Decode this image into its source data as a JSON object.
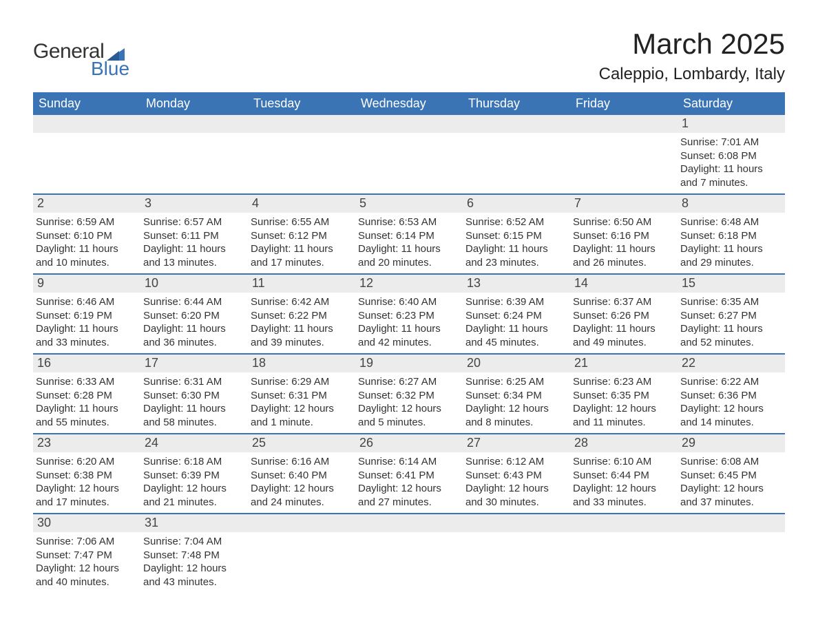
{
  "logo": {
    "general": "General",
    "blue": "Blue"
  },
  "title": "March 2025",
  "location": "Caleppio, Lombardy, Italy",
  "colors": {
    "header_bg": "#3a74b5",
    "header_text": "#ffffff",
    "daynum_bg": "#ececec",
    "body_text": "#333333",
    "row_divider": "#3a74b5",
    "logo_blue": "#3a74b5",
    "logo_dark": "#333333",
    "page_bg": "#ffffff"
  },
  "typography": {
    "title_fontsize": 42,
    "location_fontsize": 24,
    "dayheader_fontsize": 18,
    "daynum_fontsize": 18,
    "body_fontsize": 15,
    "font_family": "Arial"
  },
  "day_headers": [
    "Sunday",
    "Monday",
    "Tuesday",
    "Wednesday",
    "Thursday",
    "Friday",
    "Saturday"
  ],
  "weeks": [
    [
      {
        "day": "",
        "sunrise": "",
        "sunset": "",
        "daylight": ""
      },
      {
        "day": "",
        "sunrise": "",
        "sunset": "",
        "daylight": ""
      },
      {
        "day": "",
        "sunrise": "",
        "sunset": "",
        "daylight": ""
      },
      {
        "day": "",
        "sunrise": "",
        "sunset": "",
        "daylight": ""
      },
      {
        "day": "",
        "sunrise": "",
        "sunset": "",
        "daylight": ""
      },
      {
        "day": "",
        "sunrise": "",
        "sunset": "",
        "daylight": ""
      },
      {
        "day": "1",
        "sunrise": "Sunrise: 7:01 AM",
        "sunset": "Sunset: 6:08 PM",
        "daylight": "Daylight: 11 hours and 7 minutes."
      }
    ],
    [
      {
        "day": "2",
        "sunrise": "Sunrise: 6:59 AM",
        "sunset": "Sunset: 6:10 PM",
        "daylight": "Daylight: 11 hours and 10 minutes."
      },
      {
        "day": "3",
        "sunrise": "Sunrise: 6:57 AM",
        "sunset": "Sunset: 6:11 PM",
        "daylight": "Daylight: 11 hours and 13 minutes."
      },
      {
        "day": "4",
        "sunrise": "Sunrise: 6:55 AM",
        "sunset": "Sunset: 6:12 PM",
        "daylight": "Daylight: 11 hours and 17 minutes."
      },
      {
        "day": "5",
        "sunrise": "Sunrise: 6:53 AM",
        "sunset": "Sunset: 6:14 PM",
        "daylight": "Daylight: 11 hours and 20 minutes."
      },
      {
        "day": "6",
        "sunrise": "Sunrise: 6:52 AM",
        "sunset": "Sunset: 6:15 PM",
        "daylight": "Daylight: 11 hours and 23 minutes."
      },
      {
        "day": "7",
        "sunrise": "Sunrise: 6:50 AM",
        "sunset": "Sunset: 6:16 PM",
        "daylight": "Daylight: 11 hours and 26 minutes."
      },
      {
        "day": "8",
        "sunrise": "Sunrise: 6:48 AM",
        "sunset": "Sunset: 6:18 PM",
        "daylight": "Daylight: 11 hours and 29 minutes."
      }
    ],
    [
      {
        "day": "9",
        "sunrise": "Sunrise: 6:46 AM",
        "sunset": "Sunset: 6:19 PM",
        "daylight": "Daylight: 11 hours and 33 minutes."
      },
      {
        "day": "10",
        "sunrise": "Sunrise: 6:44 AM",
        "sunset": "Sunset: 6:20 PM",
        "daylight": "Daylight: 11 hours and 36 minutes."
      },
      {
        "day": "11",
        "sunrise": "Sunrise: 6:42 AM",
        "sunset": "Sunset: 6:22 PM",
        "daylight": "Daylight: 11 hours and 39 minutes."
      },
      {
        "day": "12",
        "sunrise": "Sunrise: 6:40 AM",
        "sunset": "Sunset: 6:23 PM",
        "daylight": "Daylight: 11 hours and 42 minutes."
      },
      {
        "day": "13",
        "sunrise": "Sunrise: 6:39 AM",
        "sunset": "Sunset: 6:24 PM",
        "daylight": "Daylight: 11 hours and 45 minutes."
      },
      {
        "day": "14",
        "sunrise": "Sunrise: 6:37 AM",
        "sunset": "Sunset: 6:26 PM",
        "daylight": "Daylight: 11 hours and 49 minutes."
      },
      {
        "day": "15",
        "sunrise": "Sunrise: 6:35 AM",
        "sunset": "Sunset: 6:27 PM",
        "daylight": "Daylight: 11 hours and 52 minutes."
      }
    ],
    [
      {
        "day": "16",
        "sunrise": "Sunrise: 6:33 AM",
        "sunset": "Sunset: 6:28 PM",
        "daylight": "Daylight: 11 hours and 55 minutes."
      },
      {
        "day": "17",
        "sunrise": "Sunrise: 6:31 AM",
        "sunset": "Sunset: 6:30 PM",
        "daylight": "Daylight: 11 hours and 58 minutes."
      },
      {
        "day": "18",
        "sunrise": "Sunrise: 6:29 AM",
        "sunset": "Sunset: 6:31 PM",
        "daylight": "Daylight: 12 hours and 1 minute."
      },
      {
        "day": "19",
        "sunrise": "Sunrise: 6:27 AM",
        "sunset": "Sunset: 6:32 PM",
        "daylight": "Daylight: 12 hours and 5 minutes."
      },
      {
        "day": "20",
        "sunrise": "Sunrise: 6:25 AM",
        "sunset": "Sunset: 6:34 PM",
        "daylight": "Daylight: 12 hours and 8 minutes."
      },
      {
        "day": "21",
        "sunrise": "Sunrise: 6:23 AM",
        "sunset": "Sunset: 6:35 PM",
        "daylight": "Daylight: 12 hours and 11 minutes."
      },
      {
        "day": "22",
        "sunrise": "Sunrise: 6:22 AM",
        "sunset": "Sunset: 6:36 PM",
        "daylight": "Daylight: 12 hours and 14 minutes."
      }
    ],
    [
      {
        "day": "23",
        "sunrise": "Sunrise: 6:20 AM",
        "sunset": "Sunset: 6:38 PM",
        "daylight": "Daylight: 12 hours and 17 minutes."
      },
      {
        "day": "24",
        "sunrise": "Sunrise: 6:18 AM",
        "sunset": "Sunset: 6:39 PM",
        "daylight": "Daylight: 12 hours and 21 minutes."
      },
      {
        "day": "25",
        "sunrise": "Sunrise: 6:16 AM",
        "sunset": "Sunset: 6:40 PM",
        "daylight": "Daylight: 12 hours and 24 minutes."
      },
      {
        "day": "26",
        "sunrise": "Sunrise: 6:14 AM",
        "sunset": "Sunset: 6:41 PM",
        "daylight": "Daylight: 12 hours and 27 minutes."
      },
      {
        "day": "27",
        "sunrise": "Sunrise: 6:12 AM",
        "sunset": "Sunset: 6:43 PM",
        "daylight": "Daylight: 12 hours and 30 minutes."
      },
      {
        "day": "28",
        "sunrise": "Sunrise: 6:10 AM",
        "sunset": "Sunset: 6:44 PM",
        "daylight": "Daylight: 12 hours and 33 minutes."
      },
      {
        "day": "29",
        "sunrise": "Sunrise: 6:08 AM",
        "sunset": "Sunset: 6:45 PM",
        "daylight": "Daylight: 12 hours and 37 minutes."
      }
    ],
    [
      {
        "day": "30",
        "sunrise": "Sunrise: 7:06 AM",
        "sunset": "Sunset: 7:47 PM",
        "daylight": "Daylight: 12 hours and 40 minutes."
      },
      {
        "day": "31",
        "sunrise": "Sunrise: 7:04 AM",
        "sunset": "Sunset: 7:48 PM",
        "daylight": "Daylight: 12 hours and 43 minutes."
      },
      {
        "day": "",
        "sunrise": "",
        "sunset": "",
        "daylight": ""
      },
      {
        "day": "",
        "sunrise": "",
        "sunset": "",
        "daylight": ""
      },
      {
        "day": "",
        "sunrise": "",
        "sunset": "",
        "daylight": ""
      },
      {
        "day": "",
        "sunrise": "",
        "sunset": "",
        "daylight": ""
      },
      {
        "day": "",
        "sunrise": "",
        "sunset": "",
        "daylight": ""
      }
    ]
  ]
}
